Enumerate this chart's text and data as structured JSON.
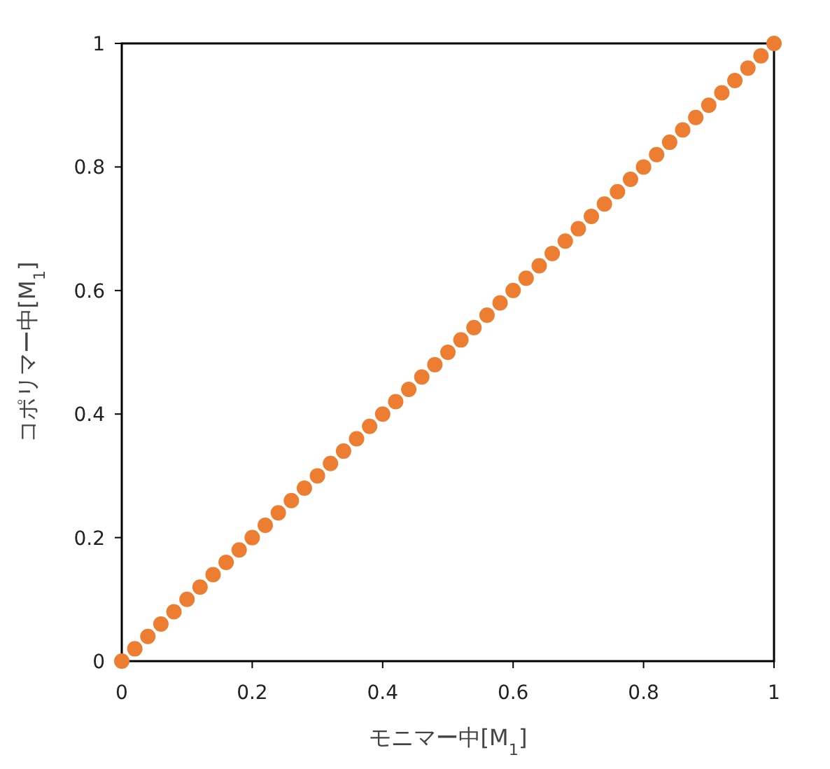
{
  "chart_data": {
    "type": "scatter",
    "xlabel": "モニマー中[M$_{1}$]",
    "ylabel": "コポリマー中[M$_{1}$]",
    "marker": "circle",
    "xlim": [
      0,
      1
    ],
    "ylim": [
      0,
      1
    ],
    "xticks": [
      0,
      0.2,
      0.4,
      0.6,
      0.8,
      1
    ],
    "yticks": [
      0,
      0.2,
      0.4,
      0.6,
      0.8,
      1
    ],
    "series": [
      {
        "color": "#ed7d31",
        "x": [
          0,
          0.02,
          0.04,
          0.06,
          0.08,
          0.1,
          0.12,
          0.14,
          0.16,
          0.18,
          0.2,
          0.22,
          0.24,
          0.26,
          0.28,
          0.3,
          0.32,
          0.34,
          0.36,
          0.38,
          0.4,
          0.42,
          0.44,
          0.46,
          0.48,
          0.5,
          0.52,
          0.54,
          0.56,
          0.58,
          0.6,
          0.62,
          0.64,
          0.66,
          0.68,
          0.7,
          0.72,
          0.74,
          0.76,
          0.78,
          0.8,
          0.82,
          0.84,
          0.86,
          0.88,
          0.9,
          0.92,
          0.94,
          0.96,
          0.98,
          1
        ],
        "values": [
          0,
          0.02,
          0.04,
          0.06,
          0.08,
          0.1,
          0.12,
          0.14,
          0.16,
          0.18,
          0.2,
          0.22,
          0.24,
          0.26,
          0.28,
          0.3,
          0.32,
          0.34,
          0.36,
          0.38,
          0.4,
          0.42,
          0.44,
          0.46,
          0.48,
          0.5,
          0.52,
          0.54,
          0.56,
          0.58,
          0.6,
          0.62,
          0.64,
          0.66,
          0.68,
          0.7,
          0.72,
          0.74,
          0.76,
          0.78,
          0.8,
          0.82,
          0.84,
          0.86,
          0.88,
          0.9,
          0.92,
          0.94,
          0.96,
          0.98,
          1
        ]
      }
    ]
  }
}
